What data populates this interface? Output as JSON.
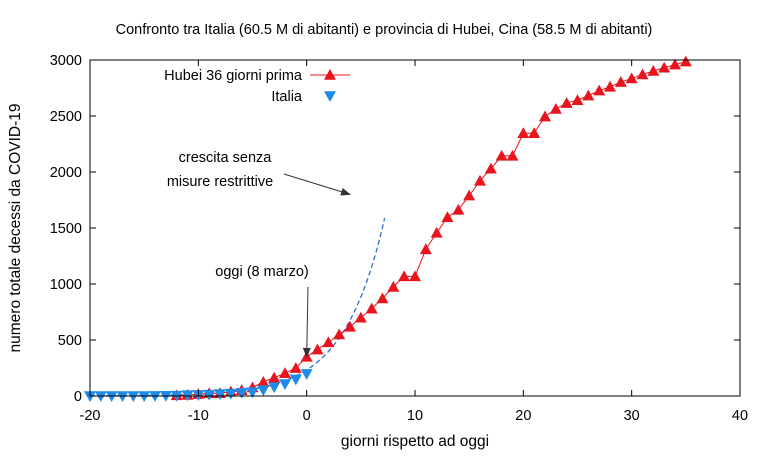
{
  "chart_data": {
    "type": "scatter",
    "title": "Confronto tra Italia (60.5 M di abitanti) e provincia di Hubei, Cina (58.5 M di abitanti)",
    "xlabel": "giorni rispetto ad oggi",
    "ylabel": "numero totale decessi da COVID-19",
    "xlim": [
      -20,
      40
    ],
    "ylim": [
      0,
      3000
    ],
    "x_ticks": [
      "-20",
      "-10",
      "0",
      "10",
      "20",
      "30",
      "40"
    ],
    "y_ticks": [
      "0",
      "500",
      "1000",
      "1500",
      "2000",
      "2500",
      "3000"
    ],
    "legend_position": "top-left",
    "grid": false,
    "series": [
      {
        "name": "Hubei 36 giorni prima",
        "color": "#e8141e",
        "marker": "triangle-up",
        "line": true,
        "x": [
          -12,
          -11,
          -10,
          -9,
          -8,
          -7,
          -6,
          -5,
          -4,
          -3,
          -2,
          -1,
          0,
          1,
          2,
          3,
          4,
          5,
          6,
          7,
          8,
          9,
          10,
          11,
          12,
          13,
          14,
          15,
          16,
          17,
          18,
          19,
          20,
          21,
          22,
          23,
          24,
          25,
          26,
          27,
          28,
          29,
          30,
          31,
          32,
          33,
          34,
          35
        ],
        "y": [
          6,
          9,
          17,
          24,
          25,
          39,
          52,
          76,
          125,
          163,
          204,
          249,
          350,
          414,
          479,
          549,
          618,
          699,
          780,
          871,
          974,
          1068,
          1068,
          1310,
          1457,
          1596,
          1662,
          1789,
          1921,
          2029,
          2144,
          2144,
          2346,
          2346,
          2495,
          2563,
          2615,
          2641,
          2682,
          2727,
          2761,
          2803,
          2835,
          2871,
          2902,
          2931,
          2959,
          2986
        ]
      },
      {
        "name": "Italia",
        "color": "#1f8be8",
        "marker": "triangle-down",
        "line": false,
        "x": [
          -20,
          -19,
          -18,
          -17,
          -16,
          -15,
          -14,
          -13,
          -12,
          -11,
          -10,
          -9,
          -8,
          -7,
          -6,
          -5,
          -4,
          -3,
          -2,
          -1,
          0
        ],
        "y": [
          0,
          0,
          0,
          0,
          0,
          0,
          1,
          2,
          3,
          7,
          10,
          12,
          17,
          21,
          29,
          34,
          52,
          79,
          107,
          148,
          197
        ]
      },
      {
        "name": "crescita senza misure restrittive",
        "color": "#2f6fd0",
        "style": "dashed",
        "curve": "exponential",
        "y0": 233,
        "doubling_days": 2.6,
        "x_end": 7.2
      }
    ],
    "annotations": [
      {
        "text": [
          "crescita senza",
          "misure restrittive"
        ],
        "arrow_to": [
          4,
          1800
        ]
      },
      {
        "text": [
          "oggi (8 marzo)"
        ],
        "arrow_to": [
          0,
          350
        ]
      }
    ]
  }
}
